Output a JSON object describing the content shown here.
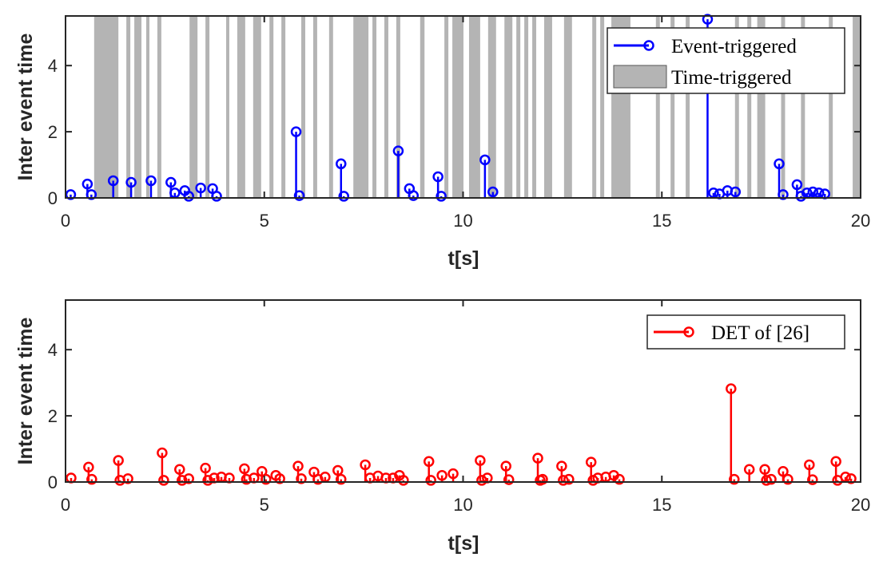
{
  "chart_data": [
    {
      "type": "stem",
      "xlabel": "t[s]",
      "ylabel": "Inter event time",
      "xlim": [
        0,
        20
      ],
      "ylim": [
        0,
        5.5
      ],
      "xticks": [
        0,
        5,
        10,
        15,
        20
      ],
      "yticks": [
        0,
        2,
        4
      ],
      "legend_position": "top-right",
      "legend": [
        "Event-triggered",
        "Time-triggered"
      ],
      "colors": {
        "stem": "#0000ff",
        "band": "#b4b4b4"
      },
      "series": [
        {
          "name": "Event-triggered",
          "points": [
            [
              0.13,
              0.1
            ],
            [
              0.55,
              0.42
            ],
            [
              0.65,
              0.1
            ],
            [
              1.2,
              0.52
            ],
            [
              1.65,
              0.47
            ],
            [
              2.15,
              0.52
            ],
            [
              2.65,
              0.47
            ],
            [
              2.75,
              0.15
            ],
            [
              3.0,
              0.22
            ],
            [
              3.1,
              0.05
            ],
            [
              3.4,
              0.3
            ],
            [
              3.7,
              0.28
            ],
            [
              3.8,
              0.05
            ],
            [
              5.8,
              2.0
            ],
            [
              5.88,
              0.07
            ],
            [
              6.93,
              1.03
            ],
            [
              7.0,
              0.05
            ],
            [
              8.37,
              1.42
            ],
            [
              8.65,
              0.28
            ],
            [
              8.75,
              0.07
            ],
            [
              9.37,
              0.64
            ],
            [
              9.45,
              0.05
            ],
            [
              10.55,
              1.15
            ],
            [
              10.75,
              0.18
            ],
            [
              16.15,
              5.4
            ],
            [
              16.3,
              0.15
            ],
            [
              16.45,
              0.12
            ],
            [
              16.65,
              0.22
            ],
            [
              16.85,
              0.18
            ],
            [
              17.95,
              1.03
            ],
            [
              18.05,
              0.1
            ],
            [
              18.4,
              0.4
            ],
            [
              18.5,
              0.05
            ],
            [
              18.65,
              0.15
            ],
            [
              18.8,
              0.18
            ],
            [
              18.95,
              0.15
            ],
            [
              19.1,
              0.12
            ]
          ]
        },
        {
          "name": "Time-triggered",
          "intervals": [
            [
              0.72,
              1.33
            ],
            [
              1.53,
              1.63
            ],
            [
              1.73,
              1.91
            ],
            [
              2.03,
              2.11
            ],
            [
              2.31,
              2.41
            ],
            [
              3.12,
              3.32
            ],
            [
              3.52,
              3.62
            ],
            [
              4.04,
              4.12
            ],
            [
              4.32,
              4.52
            ],
            [
              4.72,
              4.92
            ],
            [
              5.13,
              5.23
            ],
            [
              5.43,
              5.53
            ],
            [
              5.93,
              6.03
            ],
            [
              6.23,
              6.33
            ],
            [
              6.63,
              6.73
            ],
            [
              7.24,
              7.62
            ],
            [
              7.72,
              7.82
            ],
            [
              8.02,
              8.12
            ],
            [
              8.32,
              8.42
            ],
            [
              8.92,
              9.03
            ],
            [
              9.53,
              9.63
            ],
            [
              9.73,
              10.01
            ],
            [
              10.15,
              10.43
            ],
            [
              10.63,
              10.83
            ],
            [
              11.04,
              11.24
            ],
            [
              11.34,
              11.44
            ],
            [
              11.54,
              11.64
            ],
            [
              11.74,
              11.84
            ],
            [
              12.04,
              12.24
            ],
            [
              12.54,
              12.74
            ],
            [
              13.25,
              13.35
            ],
            [
              13.45,
              13.55
            ],
            [
              13.73,
              14.21
            ],
            [
              14.85,
              14.95
            ],
            [
              15.22,
              15.32
            ],
            [
              15.6,
              15.7
            ],
            [
              16.84,
              16.94
            ],
            [
              17.15,
              17.25
            ],
            [
              17.4,
              17.6
            ],
            [
              18.0,
              18.1
            ],
            [
              18.5,
              18.6
            ],
            [
              19.2,
              19.3
            ],
            [
              19.8,
              20.0
            ]
          ]
        }
      ]
    },
    {
      "type": "stem",
      "xlabel": "t[s]",
      "ylabel": "Inter event time",
      "xlim": [
        0,
        20
      ],
      "ylim": [
        0,
        5.5
      ],
      "xticks": [
        0,
        5,
        10,
        15,
        20
      ],
      "yticks": [
        0,
        2,
        4
      ],
      "legend_position": "top-right",
      "legend": [
        "DET of [26]"
      ],
      "colors": {
        "stem": "#ff0000"
      },
      "series": [
        {
          "name": "DET of [26]",
          "points": [
            [
              0.14,
              0.12
            ],
            [
              0.58,
              0.45
            ],
            [
              0.66,
              0.08
            ],
            [
              1.33,
              0.65
            ],
            [
              1.37,
              0.05
            ],
            [
              1.57,
              0.1
            ],
            [
              2.43,
              0.88
            ],
            [
              2.47,
              0.05
            ],
            [
              2.87,
              0.38
            ],
            [
              2.93,
              0.05
            ],
            [
              3.1,
              0.1
            ],
            [
              3.52,
              0.42
            ],
            [
              3.58,
              0.05
            ],
            [
              3.74,
              0.12
            ],
            [
              3.92,
              0.15
            ],
            [
              4.12,
              0.12
            ],
            [
              4.5,
              0.4
            ],
            [
              4.55,
              0.08
            ],
            [
              4.74,
              0.12
            ],
            [
              4.94,
              0.32
            ],
            [
              5.04,
              0.08
            ],
            [
              5.29,
              0.2
            ],
            [
              5.39,
              0.1
            ],
            [
              5.85,
              0.48
            ],
            [
              5.93,
              0.1
            ],
            [
              6.25,
              0.3
            ],
            [
              6.35,
              0.08
            ],
            [
              6.53,
              0.15
            ],
            [
              6.85,
              0.35
            ],
            [
              6.93,
              0.08
            ],
            [
              7.54,
              0.52
            ],
            [
              7.66,
              0.12
            ],
            [
              7.86,
              0.18
            ],
            [
              8.06,
              0.12
            ],
            [
              8.24,
              0.12
            ],
            [
              8.4,
              0.2
            ],
            [
              8.5,
              0.05
            ],
            [
              9.14,
              0.62
            ],
            [
              9.19,
              0.05
            ],
            [
              9.47,
              0.2
            ],
            [
              9.75,
              0.25
            ],
            [
              10.43,
              0.65
            ],
            [
              10.47,
              0.05
            ],
            [
              10.61,
              0.12
            ],
            [
              11.08,
              0.48
            ],
            [
              11.15,
              0.07
            ],
            [
              11.88,
              0.72
            ],
            [
              11.94,
              0.05
            ],
            [
              12.0,
              0.08
            ],
            [
              12.48,
              0.48
            ],
            [
              12.52,
              0.05
            ],
            [
              12.66,
              0.08
            ],
            [
              13.22,
              0.6
            ],
            [
              13.27,
              0.05
            ],
            [
              13.39,
              0.12
            ],
            [
              13.59,
              0.15
            ],
            [
              13.79,
              0.2
            ],
            [
              13.93,
              0.08
            ],
            [
              16.74,
              2.82
            ],
            [
              16.82,
              0.08
            ],
            [
              17.2,
              0.38
            ],
            [
              17.59,
              0.38
            ],
            [
              17.63,
              0.05
            ],
            [
              17.75,
              0.08
            ],
            [
              18.05,
              0.32
            ],
            [
              18.17,
              0.08
            ],
            [
              18.71,
              0.52
            ],
            [
              18.79,
              0.07
            ],
            [
              19.38,
              0.62
            ],
            [
              19.42,
              0.05
            ],
            [
              19.62,
              0.15
            ],
            [
              19.76,
              0.1
            ]
          ]
        }
      ]
    }
  ]
}
